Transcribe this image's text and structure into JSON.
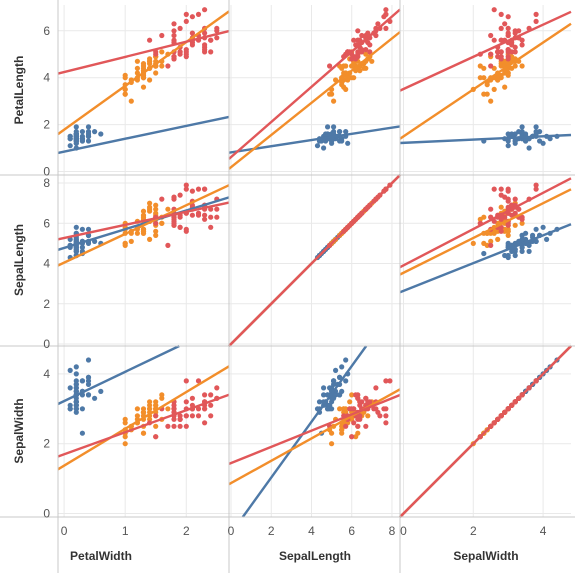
{
  "chart_data": {
    "type": "scatter",
    "title": "",
    "layout": "scatter-matrix",
    "columns": [
      "PetalWidth",
      "SepalLength",
      "SepalWidth"
    ],
    "rows": [
      "PetalLength",
      "SepalLength",
      "SepalWidth"
    ],
    "trend_lines": true,
    "grid": true,
    "legend": "none",
    "ranges": {
      "PetalWidth": [
        -0.1,
        2.7
      ],
      "SepalLength": [
        -0.1,
        8.4
      ],
      "SepalWidth": [
        -0.1,
        4.8
      ],
      "PetalLength": [
        -0.15,
        7.1
      ]
    },
    "ticks": {
      "PetalWidth": [
        0,
        1,
        2
      ],
      "SepalLength": [
        0,
        2,
        4,
        6,
        8
      ],
      "SepalWidth": [
        0,
        2,
        4
      ],
      "PetalLength": [
        0,
        2,
        4,
        6
      ]
    },
    "series": [
      {
        "color": "#4e79a7",
        "points": [
          [
            0.2,
            1.4,
            5.1,
            3.5
          ],
          [
            0.2,
            1.4,
            4.9,
            3.0
          ],
          [
            0.2,
            1.3,
            4.7,
            3.2
          ],
          [
            0.2,
            1.5,
            4.6,
            3.1
          ],
          [
            0.2,
            1.4,
            5.0,
            3.6
          ],
          [
            0.4,
            1.7,
            5.4,
            3.9
          ],
          [
            0.3,
            1.4,
            4.6,
            3.4
          ],
          [
            0.2,
            1.5,
            5.0,
            3.4
          ],
          [
            0.2,
            1.4,
            4.4,
            2.9
          ],
          [
            0.1,
            1.5,
            4.9,
            3.1
          ],
          [
            0.2,
            1.5,
            5.4,
            3.7
          ],
          [
            0.2,
            1.6,
            4.8,
            3.4
          ],
          [
            0.1,
            1.4,
            4.8,
            3.0
          ],
          [
            0.1,
            1.1,
            4.3,
            3.0
          ],
          [
            0.2,
            1.2,
            5.8,
            4.0
          ],
          [
            0.4,
            1.5,
            5.7,
            4.4
          ],
          [
            0.4,
            1.3,
            5.4,
            3.9
          ],
          [
            0.3,
            1.4,
            5.1,
            3.5
          ],
          [
            0.3,
            1.7,
            5.7,
            3.8
          ],
          [
            0.3,
            1.5,
            5.1,
            3.8
          ],
          [
            0.2,
            1.7,
            5.4,
            3.4
          ],
          [
            0.4,
            1.5,
            5.1,
            3.7
          ],
          [
            0.2,
            1.0,
            4.6,
            3.6
          ],
          [
            0.5,
            1.7,
            5.1,
            3.3
          ],
          [
            0.2,
            1.9,
            4.8,
            3.4
          ],
          [
            0.2,
            1.6,
            5.0,
            3.0
          ],
          [
            0.4,
            1.6,
            5.0,
            3.4
          ],
          [
            0.2,
            1.5,
            5.2,
            3.5
          ],
          [
            0.2,
            1.4,
            5.2,
            3.4
          ],
          [
            0.2,
            1.6,
            4.7,
            3.2
          ],
          [
            0.2,
            1.6,
            4.8,
            3.1
          ],
          [
            0.4,
            1.5,
            5.4,
            3.4
          ],
          [
            0.1,
            1.5,
            5.2,
            4.1
          ],
          [
            0.2,
            1.4,
            5.5,
            4.2
          ],
          [
            0.2,
            1.5,
            4.9,
            3.1
          ],
          [
            0.2,
            1.2,
            5.0,
            3.2
          ],
          [
            0.2,
            1.3,
            5.5,
            3.5
          ],
          [
            0.1,
            1.4,
            4.9,
            3.6
          ],
          [
            0.2,
            1.3,
            4.4,
            3.0
          ],
          [
            0.2,
            1.5,
            5.1,
            3.4
          ],
          [
            0.3,
            1.3,
            5.0,
            3.5
          ],
          [
            0.3,
            1.3,
            4.5,
            2.3
          ],
          [
            0.2,
            1.3,
            4.4,
            3.2
          ],
          [
            0.6,
            1.6,
            5.0,
            3.5
          ],
          [
            0.4,
            1.9,
            5.1,
            3.8
          ],
          [
            0.3,
            1.4,
            4.8,
            3.0
          ],
          [
            0.2,
            1.6,
            5.1,
            3.8
          ],
          [
            0.2,
            1.4,
            4.6,
            3.2
          ],
          [
            0.2,
            1.5,
            5.3,
            3.7
          ],
          [
            0.2,
            1.4,
            5.0,
            3.3
          ]
        ],
        "trend": {
          "PetalWidth": {
            "PetalLength": [
              0.848,
              0.548
            ],
            "SepalLength": [
              4.777,
              0.93
            ],
            "SepalWidth": [
              3.222,
              0.837
            ]
          },
          "SepalLength": {
            "PetalLength": [
              0.813,
              0.132
            ],
            "SepalLength": [
              0,
              1
            ],
            "SepalWidth": [
              -0.569,
              0.799
            ]
          },
          "SepalWidth": {
            "PetalLength": [
              1.222,
              0.07
            ],
            "SepalLength": [
              2.639,
              0.69
            ],
            "SepalWidth": [
              0,
              1
            ]
          }
        }
      },
      {
        "color": "#f28e2b",
        "points": [
          [
            1.4,
            4.7,
            7.0,
            3.2
          ],
          [
            1.5,
            4.5,
            6.4,
            3.2
          ],
          [
            1.5,
            4.9,
            6.9,
            3.1
          ],
          [
            1.3,
            4.0,
            5.5,
            2.3
          ],
          [
            1.5,
            4.6,
            6.5,
            2.8
          ],
          [
            1.3,
            4.5,
            5.7,
            2.8
          ],
          [
            1.6,
            4.7,
            6.3,
            3.3
          ],
          [
            1.0,
            3.3,
            4.9,
            2.4
          ],
          [
            1.3,
            4.6,
            6.6,
            2.9
          ],
          [
            1.4,
            3.9,
            5.2,
            2.7
          ],
          [
            1.0,
            3.5,
            5.0,
            2.0
          ],
          [
            1.5,
            4.2,
            5.9,
            3.0
          ],
          [
            1.0,
            4.0,
            6.0,
            2.2
          ],
          [
            1.4,
            4.7,
            6.1,
            2.9
          ],
          [
            1.3,
            3.6,
            5.6,
            2.9
          ],
          [
            1.4,
            4.4,
            6.7,
            3.1
          ],
          [
            1.5,
            4.5,
            5.6,
            3.0
          ],
          [
            1.0,
            4.1,
            5.8,
            2.7
          ],
          [
            1.5,
            4.5,
            6.2,
            2.2
          ],
          [
            1.1,
            3.9,
            5.6,
            2.5
          ],
          [
            1.8,
            4.8,
            5.9,
            3.2
          ],
          [
            1.3,
            4.0,
            6.1,
            2.8
          ],
          [
            1.5,
            4.9,
            6.3,
            2.5
          ],
          [
            1.2,
            4.7,
            6.1,
            2.8
          ],
          [
            1.3,
            4.3,
            6.4,
            2.9
          ],
          [
            1.4,
            4.4,
            6.6,
            3.0
          ],
          [
            1.4,
            4.8,
            6.8,
            2.8
          ],
          [
            1.7,
            5.0,
            6.7,
            3.0
          ],
          [
            1.5,
            4.5,
            6.0,
            2.9
          ],
          [
            1.0,
            3.5,
            5.7,
            2.6
          ],
          [
            1.1,
            3.8,
            5.5,
            2.4
          ],
          [
            1.0,
            3.7,
            5.5,
            2.4
          ],
          [
            1.2,
            3.9,
            5.8,
            2.7
          ],
          [
            1.6,
            5.1,
            6.0,
            2.7
          ],
          [
            1.5,
            4.5,
            5.4,
            3.0
          ],
          [
            1.6,
            4.5,
            6.0,
            3.4
          ],
          [
            1.5,
            4.7,
            6.7,
            3.1
          ],
          [
            1.3,
            4.4,
            6.3,
            2.3
          ],
          [
            1.3,
            4.1,
            5.6,
            3.0
          ],
          [
            1.3,
            4.0,
            5.5,
            2.5
          ],
          [
            1.2,
            4.4,
            5.5,
            2.6
          ],
          [
            1.4,
            4.6,
            6.1,
            3.0
          ],
          [
            1.2,
            4.0,
            5.8,
            2.6
          ],
          [
            1.0,
            3.3,
            5.0,
            2.3
          ],
          [
            1.3,
            4.2,
            5.6,
            2.7
          ],
          [
            1.2,
            4.2,
            5.7,
            3.0
          ],
          [
            1.3,
            4.2,
            5.7,
            2.9
          ],
          [
            1.3,
            4.3,
            6.2,
            2.9
          ],
          [
            1.1,
            3.0,
            5.1,
            2.5
          ],
          [
            1.3,
            4.1,
            5.7,
            2.8
          ]
        ],
        "trend": {
          "PetalWidth": {
            "PetalLength": [
              1.781,
              1.869
            ],
            "SepalLength": [
              4.044,
              1.426
            ],
            "SepalWidth": [
              1.373,
              1.054
            ]
          },
          "SepalLength": {
            "PetalLength": [
              0.185,
              0.686
            ],
            "SepalLength": [
              0,
              1
            ],
            "SepalWidth": [
              0.872,
              0.32
            ]
          },
          "SepalWidth": {
            "PetalLength": [
              1.5,
              1.0
            ],
            "SepalLength": [
              3.539,
              0.865
            ],
            "SepalWidth": [
              0,
              1
            ]
          }
        }
      },
      {
        "color": "#e15759",
        "points": [
          [
            2.5,
            6.0,
            6.3,
            3.3
          ],
          [
            1.9,
            5.1,
            5.8,
            2.7
          ],
          [
            2.1,
            5.9,
            7.1,
            3.0
          ],
          [
            1.8,
            5.6,
            6.3,
            2.9
          ],
          [
            2.2,
            5.8,
            6.5,
            3.0
          ],
          [
            2.1,
            6.6,
            7.6,
            3.0
          ],
          [
            1.7,
            4.5,
            4.9,
            2.5
          ],
          [
            1.8,
            6.3,
            7.3,
            2.9
          ],
          [
            1.8,
            5.8,
            6.7,
            2.5
          ],
          [
            2.5,
            6.1,
            7.2,
            3.6
          ],
          [
            2.0,
            5.1,
            6.5,
            3.2
          ],
          [
            1.9,
            5.3,
            6.4,
            2.7
          ],
          [
            2.1,
            5.5,
            6.8,
            3.0
          ],
          [
            2.0,
            5.0,
            5.7,
            2.5
          ],
          [
            2.4,
            5.1,
            5.8,
            2.8
          ],
          [
            2.3,
            5.3,
            6.4,
            3.2
          ],
          [
            1.8,
            5.5,
            6.5,
            3.0
          ],
          [
            2.2,
            6.7,
            7.7,
            3.8
          ],
          [
            2.3,
            6.9,
            7.7,
            2.6
          ],
          [
            1.5,
            5.0,
            6.0,
            2.2
          ],
          [
            2.3,
            5.7,
            6.9,
            3.2
          ],
          [
            2.0,
            4.9,
            5.6,
            2.8
          ],
          [
            2.0,
            6.7,
            7.7,
            2.8
          ],
          [
            1.8,
            4.9,
            6.3,
            2.7
          ],
          [
            2.1,
            5.7,
            6.7,
            3.3
          ],
          [
            1.8,
            6.0,
            7.2,
            3.2
          ],
          [
            1.8,
            4.8,
            6.2,
            2.8
          ],
          [
            1.8,
            4.9,
            6.1,
            3.0
          ],
          [
            2.1,
            5.6,
            6.4,
            2.8
          ],
          [
            1.6,
            5.8,
            7.2,
            3.0
          ],
          [
            1.9,
            6.1,
            7.4,
            2.8
          ],
          [
            2.0,
            6.4,
            7.9,
            3.8
          ],
          [
            2.2,
            5.6,
            6.4,
            2.8
          ],
          [
            1.5,
            5.1,
            6.3,
            2.8
          ],
          [
            1.4,
            5.6,
            6.1,
            2.6
          ],
          [
            2.3,
            6.1,
            7.7,
            3.0
          ],
          [
            2.4,
            5.6,
            6.3,
            3.4
          ],
          [
            1.8,
            5.5,
            6.4,
            3.1
          ],
          [
            1.8,
            4.8,
            6.0,
            3.0
          ],
          [
            2.1,
            5.4,
            6.9,
            3.1
          ],
          [
            2.4,
            5.6,
            6.7,
            3.1
          ],
          [
            2.3,
            5.1,
            6.9,
            3.1
          ],
          [
            1.9,
            5.1,
            5.8,
            2.7
          ],
          [
            2.3,
            5.9,
            6.8,
            3.2
          ],
          [
            2.5,
            5.7,
            6.7,
            3.3
          ],
          [
            2.3,
            5.2,
            6.7,
            3.0
          ],
          [
            1.9,
            5.0,
            6.3,
            2.5
          ],
          [
            2.0,
            5.2,
            6.5,
            3.0
          ],
          [
            2.3,
            5.4,
            6.2,
            3.4
          ],
          [
            1.8,
            5.1,
            5.9,
            3.0
          ]
        ],
        "trend": {
          "PetalWidth": {
            "PetalLength": [
              4.241,
              0.647
            ],
            "SepalLength": [
              5.27,
              0.651
            ],
            "SepalWidth": [
              1.698,
              0.631
            ]
          },
          "SepalLength": {
            "PetalLength": [
              0.61,
              0.75
            ],
            "SepalLength": [
              0,
              1
            ],
            "SepalWidth": [
              1.446,
              0.232
            ]
          },
          "SepalWidth": {
            "PetalLength": [
              3.517,
              0.686
            ],
            "SepalLength": [
              3.907,
              0.902
            ],
            "SepalWidth": [
              0,
              1
            ]
          }
        }
      }
    ]
  }
}
